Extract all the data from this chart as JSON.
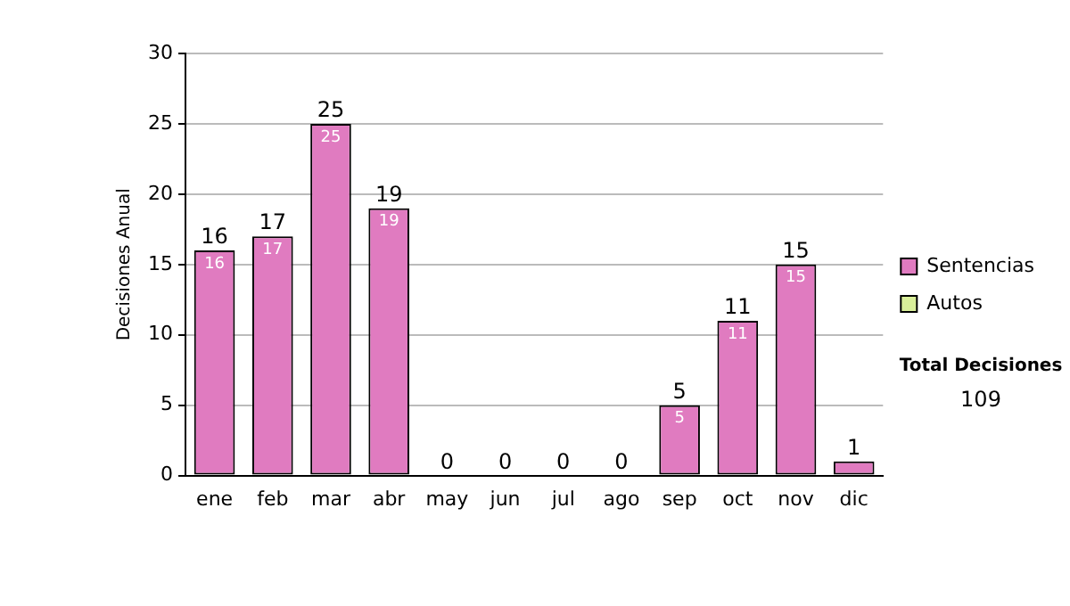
{
  "chart_data": {
    "type": "bar",
    "ylabel": "Decisiones Anual",
    "categories": [
      "ene",
      "feb",
      "mar",
      "abr",
      "may",
      "jun",
      "jul",
      "ago",
      "sep",
      "oct",
      "nov",
      "dic"
    ],
    "series": [
      {
        "name": "Sentencias",
        "color": "#e07bc0",
        "values": [
          16,
          17,
          25,
          19,
          0,
          0,
          0,
          0,
          5,
          11,
          15,
          1
        ],
        "value_labels": [
          "16",
          "17",
          "25",
          "19",
          null,
          null,
          null,
          null,
          "5",
          "11",
          "15",
          null
        ]
      },
      {
        "name": "Autos",
        "color": "#d9ef9a",
        "values": [
          0,
          0,
          0,
          0,
          0,
          0,
          0,
          0,
          0,
          0,
          0,
          0
        ]
      }
    ],
    "stacked": true,
    "totals": [
      "16",
      "17",
      "25",
      "19",
      "0",
      "0",
      "0",
      "0",
      "5",
      "11",
      "15",
      "1"
    ],
    "ylim": [
      0,
      30
    ],
    "yticks": [
      0,
      5,
      10,
      15,
      20,
      25,
      30
    ],
    "grid": "y",
    "legend": "right",
    "annotations": [
      "Total Decisiones",
      "109"
    ]
  }
}
